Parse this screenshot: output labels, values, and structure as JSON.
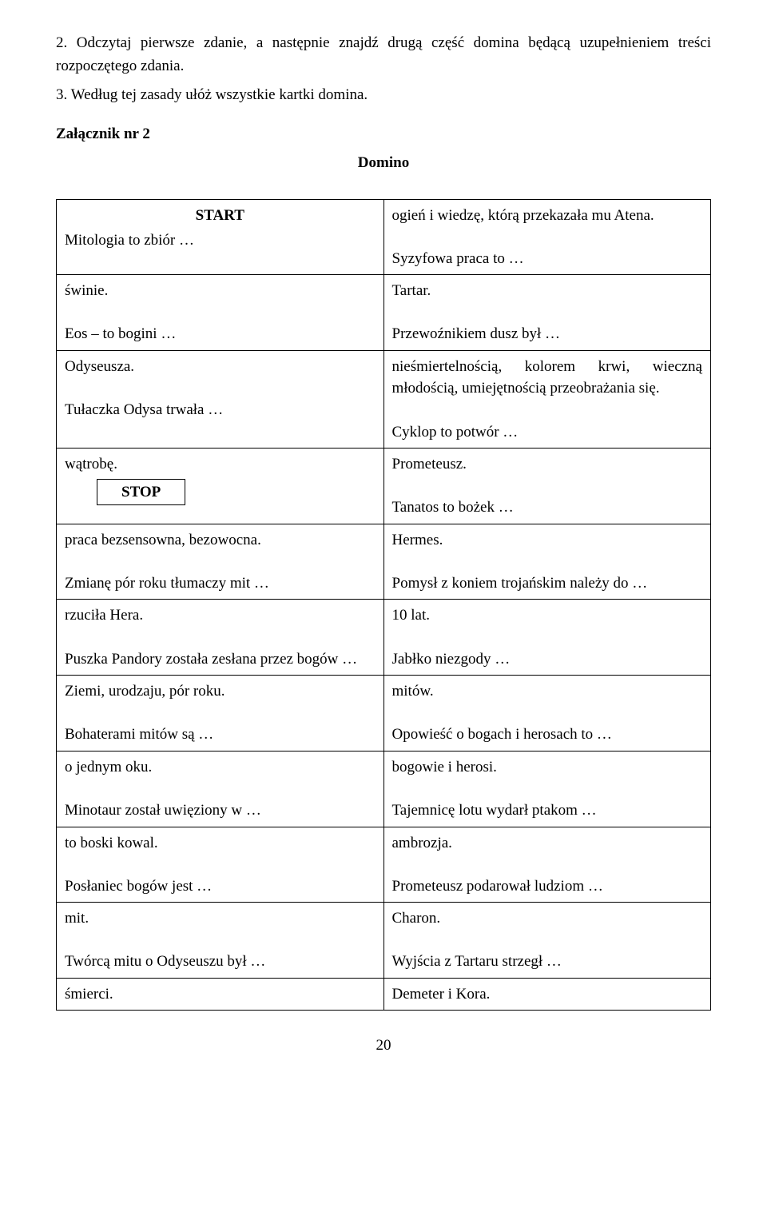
{
  "instructions": {
    "item2": "2. Odczytaj pierwsze zdanie, a następnie znajdź drugą część domina będącą uzupełnieniem treści rozpoczętego zdania.",
    "item3": "3. Według tej zasady ułóż wszystkie kartki domina."
  },
  "attachment": {
    "title": "Załącznik nr 2",
    "game_title": "Domino"
  },
  "labels": {
    "start": "START",
    "stop": "STOP"
  },
  "cells": {
    "left": {
      "c0a": "Mitologia to zbiór …",
      "c1": "świnie.",
      "c1b": "Eos – to bogini …",
      "c2": "Odyseusza.",
      "c2b": "Tułaczka Odysa trwała …",
      "c3": "wątrobę.",
      "c4": "praca bezsensowna, bezowocna.",
      "c4b": "Zmianę pór roku tłumaczy mit …",
      "c5": "rzuciła Hera.",
      "c5b": "Puszka Pandory została zesłana przez bogów …",
      "c6": "Ziemi, urodzaju, pór roku.",
      "c6b": "Bohaterami mitów są …",
      "c7": "o jednym oku.",
      "c7b": "Minotaur został uwięziony w …",
      "c8": "to boski kowal.",
      "c8b": "Posłaniec bogów jest …",
      "c9": "mit.",
      "c9b": "Twórcą mitu o Odyseuszu był …",
      "c10": "śmierci."
    },
    "right": {
      "c0": "ogień i wiedzę, którą przekazała mu Atena.",
      "c0b": "Syzyfowa praca to …",
      "c1": "Tartar.",
      "c1b": "Przewoźnikiem dusz był …",
      "c2": "nieśmiertelnością, kolorem krwi, wieczną młodością, umiejętnością przeobrażania się.",
      "c2b": "Cyklop to potwór …",
      "c3": "Prometeusz.",
      "c3b": "Tanatos to bożek …",
      "c4": "Hermes.",
      "c4b": "Pomysł z koniem trojańskim należy do …",
      "c5": "10 lat.",
      "c5b": "Jabłko niezgody …",
      "c6": "mitów.",
      "c6b": "Opowieść o bogach i herosach to …",
      "c7": "bogowie i herosi.",
      "c7b": "Tajemnicę lotu wydarł ptakom …",
      "c8": "ambrozja.",
      "c8b": "Prometeusz podarował ludziom …",
      "c9": "Charon.",
      "c9b": "Wyjścia z Tartaru strzegł …",
      "c10": "Demeter i Kora."
    }
  },
  "page_number": "20"
}
